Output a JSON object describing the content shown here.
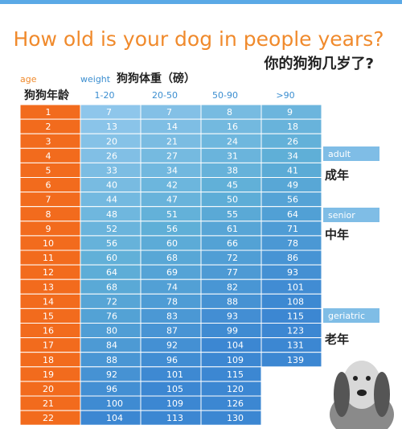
{
  "header": {
    "title": "How old is your dog in people years?",
    "subtitle": "你的狗狗几岁了?"
  },
  "table": {
    "age_label": "age",
    "age_label_cn": "狗狗年龄",
    "weight_label": "weight",
    "weight_label_cn": "狗狗体重（磅）",
    "columns": [
      "1-20",
      "20-50",
      "50-90",
      ">90"
    ],
    "rows": [
      [
        1,
        7,
        7,
        8,
        9
      ],
      [
        2,
        13,
        14,
        16,
        18
      ],
      [
        3,
        20,
        21,
        24,
        26
      ],
      [
        4,
        26,
        27,
        31,
        34
      ],
      [
        5,
        33,
        34,
        38,
        41
      ],
      [
        6,
        40,
        42,
        45,
        49
      ],
      [
        7,
        44,
        47,
        50,
        56
      ],
      [
        8,
        48,
        51,
        55,
        64
      ],
      [
        9,
        52,
        56,
        61,
        71
      ],
      [
        10,
        56,
        60,
        66,
        78
      ],
      [
        11,
        60,
        68,
        72,
        86
      ],
      [
        12,
        64,
        69,
        77,
        93
      ],
      [
        13,
        68,
        74,
        82,
        101
      ],
      [
        14,
        72,
        78,
        88,
        108
      ],
      [
        15,
        76,
        83,
        93,
        115
      ],
      [
        16,
        80,
        87,
        99,
        123
      ],
      [
        17,
        84,
        92,
        104,
        131
      ],
      [
        18,
        88,
        96,
        109,
        139
      ],
      [
        19,
        92,
        101,
        115
      ],
      [
        20,
        96,
        105,
        120
      ],
      [
        21,
        100,
        109,
        126
      ],
      [
        22,
        104,
        113,
        130
      ]
    ]
  },
  "stages": [
    {
      "label": "adult",
      "label_cn": "成年"
    },
    {
      "label": "senior",
      "label_cn": "中年"
    },
    {
      "label": "geriatric",
      "label_cn": "老年"
    }
  ]
}
